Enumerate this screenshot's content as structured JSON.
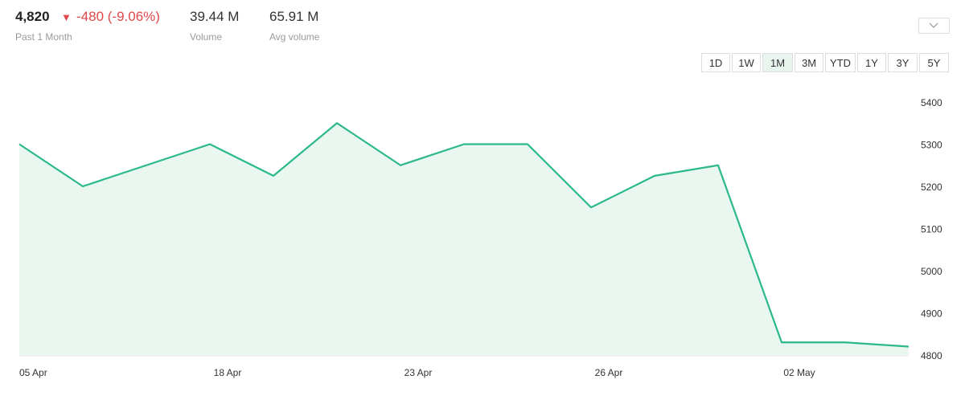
{
  "header": {
    "price": "4,820",
    "arrow": "▼",
    "change": "-480 (-9.06%)",
    "period": "Past 1 Month",
    "volume": "39.44 M",
    "volume_label": "Volume",
    "avg_volume": "65.91 M",
    "avg_volume_label": "Avg volume"
  },
  "ranges": [
    "1D",
    "1W",
    "1M",
    "3M",
    "YTD",
    "1Y",
    "3Y",
    "5Y"
  ],
  "selected_range": 2,
  "chart_data": {
    "type": "area",
    "categories": [
      "05 Apr",
      null,
      null,
      "18 Apr",
      null,
      null,
      "23 Apr",
      null,
      null,
      "26 Apr",
      null,
      null,
      "02 May",
      null,
      null
    ],
    "values": [
      5300,
      5200,
      5250,
      5300,
      5225,
      5350,
      5250,
      5300,
      5300,
      5150,
      5225,
      5250,
      4830,
      4830,
      4820
    ],
    "color": "#2bb98a",
    "fill": "#e9f7f0",
    "ylim": [
      4800,
      5400
    ],
    "yticks": [
      4800,
      4900,
      5000,
      5100,
      5200,
      5300,
      5400
    ]
  }
}
